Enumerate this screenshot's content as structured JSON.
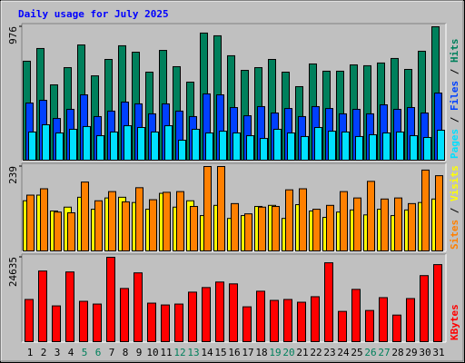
{
  "chart_data": {
    "type": "bar",
    "title": "Daily usage for July 2025",
    "title_color": "#0000ff",
    "categories": [
      "1",
      "2",
      "3",
      "4",
      "5",
      "6",
      "7",
      "8",
      "9",
      "10",
      "11",
      "12",
      "13",
      "14",
      "15",
      "16",
      "17",
      "18",
      "19",
      "20",
      "21",
      "22",
      "23",
      "24",
      "25",
      "26",
      "27",
      "28",
      "29",
      "30",
      "31"
    ],
    "category_colors": [
      "#000000",
      "#000000",
      "#000000",
      "#000000",
      "#00805c",
      "#00805c",
      "#000000",
      "#000000",
      "#000000",
      "#000000",
      "#000000",
      "#00805c",
      "#00805c",
      "#000000",
      "#000000",
      "#000000",
      "#000000",
      "#000000",
      "#00805c",
      "#00805c",
      "#000000",
      "#000000",
      "#000000",
      "#000000",
      "#000000",
      "#00805c",
      "#00805c",
      "#000000",
      "#000000",
      "#000000",
      "#000000"
    ],
    "legend_separator": " / ",
    "grid": false,
    "panels": [
      {
        "ylim": [
          0,
          976
        ],
        "yticks": [
          976
        ],
        "series": [
          {
            "name": "Hits",
            "color": "#00805c",
            "values": [
              724,
              817,
              551,
              677,
              843,
              617,
              737,
              837,
              790,
              644,
              803,
              684,
              571,
              930,
              910,
              764,
              657,
              677,
              737,
              644,
              538,
              704,
              651,
              651,
              697,
              691,
              711,
              744,
              664,
              797,
              976
            ]
          },
          {
            "name": "Files",
            "color": "#0040ff",
            "values": [
              418,
              438,
              305,
              372,
              478,
              319,
              359,
              425,
              412,
              339,
              412,
              359,
              319,
              485,
              478,
              385,
              325,
              392,
              345,
              378,
              319,
              392,
              378,
              339,
              372,
              339,
              405,
              372,
              385,
              345,
              491
            ]
          },
          {
            "name": "Pages",
            "color": "#00e0ff",
            "values": [
              206,
              259,
              199,
              226,
              246,
              179,
              206,
              252,
              239,
              206,
              252,
              146,
              226,
              199,
              212,
              199,
              179,
              159,
              226,
              199,
              173,
              239,
              212,
              206,
              173,
              186,
              199,
              206,
              179,
              166,
              219
            ]
          }
        ]
      },
      {
        "ylim": [
          0,
          239
        ],
        "yticks": [
          239
        ],
        "series": [
          {
            "name": "Visits",
            "color": "#ffff00",
            "values": [
              142,
              158,
              113,
              124,
              152,
              118,
              150,
              152,
              137,
              118,
              163,
              124,
              142,
              100,
              129,
              92,
              100,
              126,
              129,
              92,
              131,
              113,
              95,
              110,
              116,
              102,
              118,
              100,
              116,
              137,
              147
            ]
          },
          {
            "name": "Sites",
            "color": "#ff8000",
            "values": [
              158,
              176,
              110,
              108,
              195,
              142,
              168,
              139,
              179,
              145,
              166,
              168,
              126,
              239,
              239,
              134,
              105,
              124,
              126,
              173,
              176,
              118,
              129,
              168,
              150,
              197,
              147,
              150,
              134,
              229,
              213
            ]
          }
        ]
      },
      {
        "ylim": [
          0,
          24635
        ],
        "yticks": [
          24635
        ],
        "series": [
          {
            "name": "KBytes",
            "color": "#ff0000",
            "values": [
              12319,
              20621,
              10444,
              20353,
              11783,
              10980,
              24635,
              15532,
              20086,
              11248,
              10712,
              10980,
              14461,
              15800,
              17407,
              16872,
              10176,
              14729,
              12051,
              12319,
              11515,
              13122,
              23028,
              8837,
              15264,
              9105,
              12854,
              7766,
              12586,
              19282,
              22492
            ]
          }
        ]
      }
    ]
  }
}
